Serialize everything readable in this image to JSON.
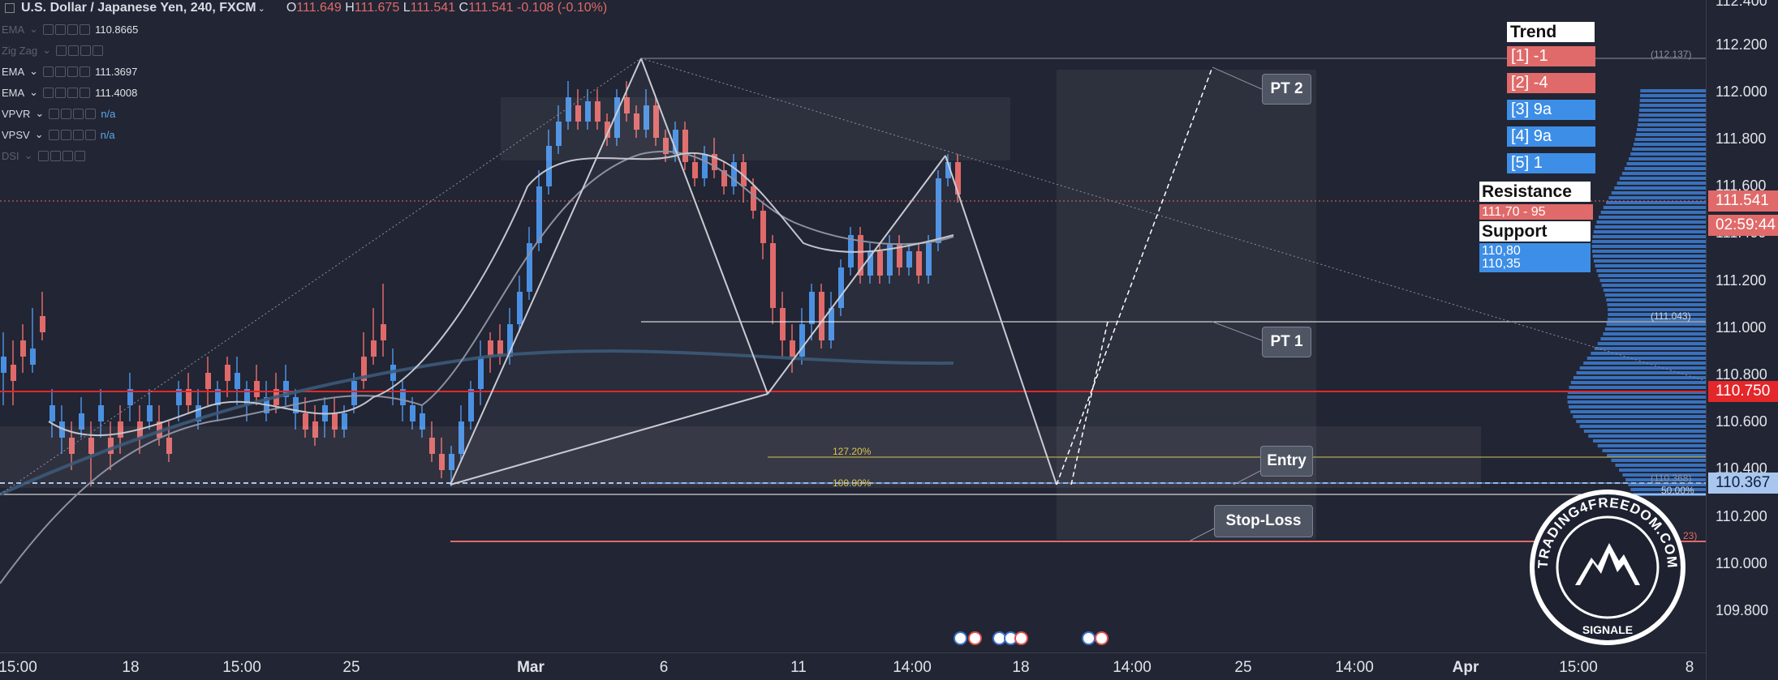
{
  "header": {
    "symbol": "U.S. Dollar / Japanese Yen, 240, FXCM",
    "o_label": "O",
    "o": "111.649",
    "h_label": "H",
    "h": "111.675",
    "l_label": "L",
    "l": "111.541",
    "c_label": "C",
    "c": "111.541",
    "change": "-0.108 (-0.10%)"
  },
  "indicators": [
    {
      "name": "EMA",
      "value": "110.8665",
      "dim": true
    },
    {
      "name": "Zig Zag",
      "value": "",
      "dim": true
    },
    {
      "name": "EMA",
      "value": "111.3697",
      "dim": false
    },
    {
      "name": "EMA",
      "value": "111.4008",
      "dim": false
    },
    {
      "name": "VPVR",
      "value": "n/a",
      "dim": false
    },
    {
      "name": "VPSV",
      "value": "n/a",
      "dim": false
    },
    {
      "name": "DSI",
      "value": "",
      "dim": true
    }
  ],
  "trend_panel": {
    "title": "Trend",
    "rows": [
      {
        "label": "[1] -1",
        "color": "#e06a6a"
      },
      {
        "label": "[2] -4",
        "color": "#e06a6a"
      },
      {
        "label": "[3] 9a",
        "color": "#3d8ee6"
      },
      {
        "label": "[4] 9a",
        "color": "#3d8ee6"
      },
      {
        "label": "[5] 1",
        "color": "#3d8ee6"
      }
    ],
    "resistance_title": "Resistance",
    "resistance_value": "111,70 - 95",
    "support_title": "Support",
    "support_values": [
      "110,80",
      "110,35"
    ]
  },
  "annotations": {
    "pt2": "PT 2",
    "pt1": "PT 1",
    "entry": "Entry",
    "stop_loss": "Stop-Loss",
    "fib_127": "127.20%",
    "fib_100": "100.00%",
    "fib_50": "50.00%",
    "price_112137": "(112.137)",
    "price_111043": "(111.043)",
    "price_110368": "(110.368)",
    "price_partial_23": "23)"
  },
  "price_axis": {
    "ticks": [
      "112.400",
      "112.200",
      "112.000",
      "111.800",
      "111.600",
      "111.400",
      "111.200",
      "111.000",
      "110.800",
      "110.600",
      "110.400",
      "110.200",
      "110.000",
      "109.800"
    ],
    "tags": [
      {
        "label": "111.541",
        "color": "#e06a6a"
      },
      {
        "label": "02:59:44",
        "color": "#e06a6a"
      },
      {
        "label": "110.750",
        "color": "#e3272a"
      },
      {
        "label": "110.367",
        "color": "#a9c7ee"
      }
    ]
  },
  "time_axis": {
    "ticks": [
      "15:00",
      "18",
      "15:00",
      "25",
      "Mar",
      "6",
      "11",
      "14:00",
      "18",
      "14:00",
      "25",
      "14:00",
      "Apr",
      "15:00",
      "8"
    ]
  },
  "watermark": {
    "text": "TRADING4FREEDOM.COM",
    "subtext": "SIGNALE"
  },
  "colors": {
    "background": "#222533",
    "bull": "#4a90e2",
    "bear": "#e06a6a",
    "accent_red": "#e3272a",
    "fib": "#d9c54e"
  },
  "chart_data": {
    "type": "candlestick",
    "symbol": "USDJPY",
    "timeframe": "240",
    "ylim": [
      109.75,
      112.45
    ],
    "grid": false,
    "horizontal_levels": [
      112.137,
      111.043,
      110.75,
      110.368,
      110.14
    ],
    "pattern_points": [
      {
        "date": "Feb 28",
        "price": 110.37
      },
      {
        "date": "Mar 5",
        "price": 112.14
      },
      {
        "date": "Mar 8",
        "price": 110.75
      },
      {
        "date": "Mar 13",
        "price": 111.73
      },
      {
        "date": "Mar 19",
        "price": 110.37
      }
    ],
    "targets": {
      "pt1": 111.043,
      "pt2": 112.1,
      "entry": 110.368
    },
    "last_price": 111.541,
    "countdown": "02:59:44"
  }
}
